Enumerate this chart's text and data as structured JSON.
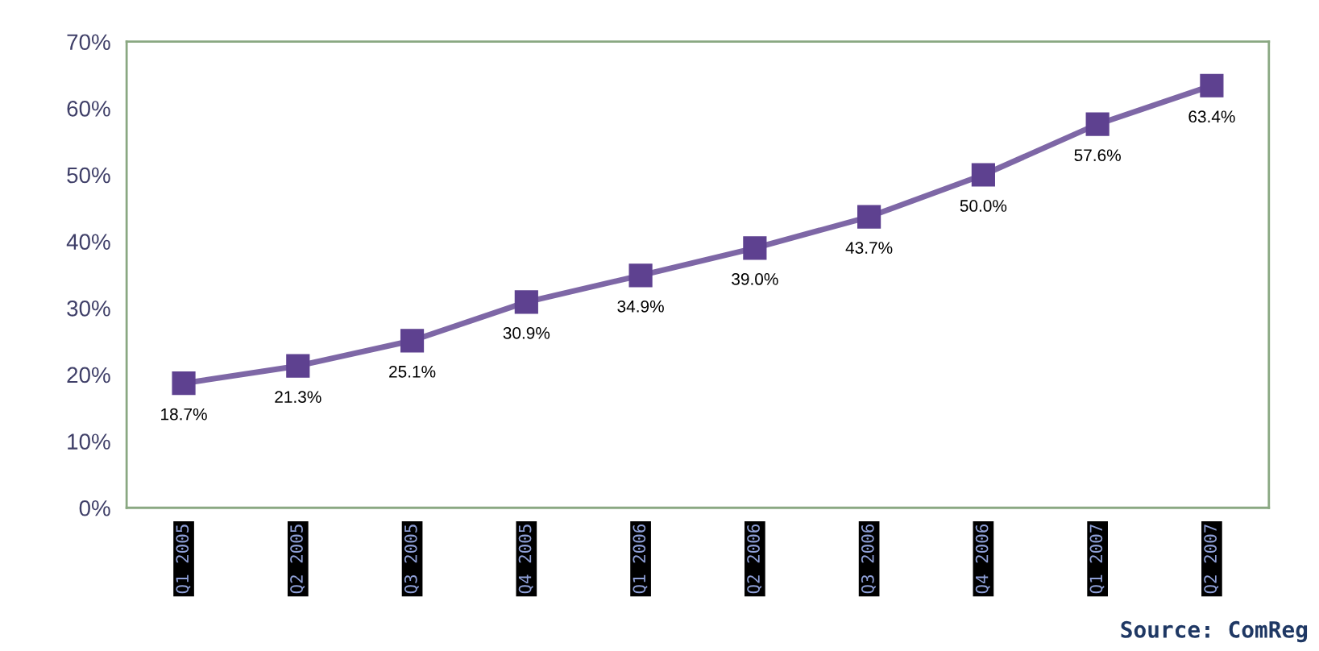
{
  "chart_data": {
    "type": "line",
    "categories": [
      "Q1 2005",
      "Q2 2005",
      "Q3 2005",
      "Q4 2005",
      "Q1 2006",
      "Q2 2006",
      "Q3 2006",
      "Q4 2006",
      "Q1 2007",
      "Q2 2007"
    ],
    "series": [
      {
        "color": "#5e4190",
        "values": [
          18.7,
          21.3,
          25.1,
          30.9,
          34.9,
          39.0,
          43.7,
          50.0,
          57.6,
          63.4
        ]
      }
    ],
    "value_labels": [
      "18.7%",
      "21.3%",
      "25.1%",
      "30.9%",
      "34.9%",
      "39.0%",
      "43.7%",
      "50.0%",
      "57.6%",
      "63.4%"
    ],
    "ylim": [
      0,
      70
    ],
    "yticks": [
      {
        "value": 0,
        "label": "0%"
      },
      {
        "value": 10,
        "label": "10%"
      },
      {
        "value": 20,
        "label": "20%"
      },
      {
        "value": 30,
        "label": "30%"
      },
      {
        "value": 40,
        "label": "40%"
      },
      {
        "value": 50,
        "label": "50%"
      },
      {
        "value": 60,
        "label": "60%"
      },
      {
        "value": 70,
        "label": "70%"
      }
    ],
    "marker": "square",
    "line_style": "solid",
    "grid": false,
    "legend": false,
    "annotations": [
      "Source: ComReg"
    ]
  }
}
